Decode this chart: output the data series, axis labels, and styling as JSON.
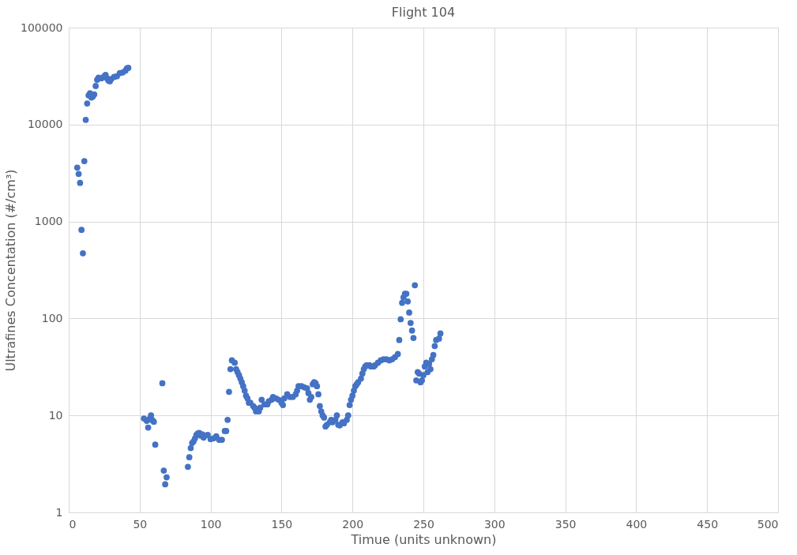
{
  "chart_data": {
    "type": "scatter",
    "title": "Flight 104",
    "xlabel": "Timue (units unknown)",
    "ylabel": "Ultrafines Concentation (#/cm³)",
    "log": "y",
    "grid": true,
    "marker": "circle",
    "xlim": [
      0,
      500
    ],
    "xticks": [
      0,
      50,
      100,
      150,
      200,
      250,
      300,
      350,
      400,
      450,
      500
    ],
    "ylim": [
      1,
      100000
    ],
    "yticks": [
      1,
      10,
      100,
      1000,
      10000,
      100000
    ],
    "series": [
      {
        "color": "#4472c4",
        "x": [
          6,
          7,
          8,
          9,
          10,
          11,
          12,
          13,
          14,
          15,
          16,
          17,
          18,
          19,
          20,
          21,
          23,
          25,
          26,
          27,
          28,
          29,
          30,
          32,
          34,
          36,
          38,
          40,
          41,
          42,
          53,
          55,
          56,
          57,
          58,
          59,
          60,
          61,
          66,
          67,
          68,
          69,
          84,
          85,
          86,
          87,
          88,
          89,
          90,
          91,
          92,
          93,
          94,
          95,
          96,
          98,
          100,
          102,
          104,
          106,
          108,
          110,
          111,
          112,
          113,
          114,
          115,
          117,
          118,
          119,
          120,
          121,
          122,
          123,
          124,
          125,
          126,
          127,
          128,
          130,
          131,
          132,
          134,
          135,
          136,
          138,
          140,
          141,
          143,
          144,
          146,
          148,
          150,
          151,
          152,
          154,
          156,
          158,
          160,
          161,
          162,
          164,
          166,
          168,
          169,
          170,
          171,
          172,
          173,
          174,
          175,
          176,
          177,
          178,
          179,
          180,
          181,
          182,
          184,
          185,
          186,
          188,
          189,
          190,
          191,
          193,
          194,
          196,
          197,
          198,
          199,
          200,
          201,
          202,
          203,
          204,
          206,
          207,
          208,
          209,
          210,
          212,
          213,
          215,
          216,
          218,
          220,
          222,
          224,
          226,
          228,
          230,
          232,
          233,
          234,
          235,
          236,
          237,
          238,
          239,
          240,
          241,
          242,
          243,
          244,
          245,
          246,
          247,
          248,
          249,
          250,
          251,
          252,
          253,
          254,
          255,
          256,
          257,
          258,
          259,
          261,
          262
        ],
        "values": [
          3600,
          3100,
          2500,
          820,
          470,
          4200,
          11200,
          16500,
          20000,
          21000,
          19000,
          19500,
          20500,
          25000,
          29000,
          30500,
          30000,
          31500,
          32500,
          30000,
          28500,
          28000,
          29500,
          31000,
          31500,
          34000,
          34500,
          36000,
          38000,
          38500,
          9.3,
          8.8,
          7.5,
          9.2,
          10,
          8.9,
          8.6,
          5,
          21.5,
          2.7,
          1.95,
          2.3,
          2.95,
          3.7,
          4.6,
          5.2,
          5.4,
          5.8,
          6.3,
          6.5,
          6.6,
          6.2,
          6.4,
          5.9,
          6.2,
          6.3,
          5.7,
          5.8,
          6.1,
          5.6,
          5.6,
          6.9,
          6.9,
          9,
          17.5,
          30,
          37,
          35,
          30,
          28,
          26,
          24,
          22,
          20,
          18,
          16,
          15,
          13.5,
          13.5,
          12.5,
          12,
          11,
          11,
          12,
          14.5,
          13,
          13,
          14,
          14.5,
          15.5,
          15,
          14.5,
          13.5,
          12.8,
          15,
          16.5,
          15.5,
          15.5,
          16.5,
          18,
          20,
          20,
          19.5,
          19,
          17,
          14.5,
          15.5,
          21,
          22,
          21.5,
          20,
          16.5,
          12.5,
          11,
          10,
          9.5,
          7.7,
          8,
          8.5,
          9,
          8.5,
          9,
          10,
          8,
          7.9,
          8.5,
          8.3,
          9,
          10,
          12.8,
          14.5,
          16,
          18,
          20,
          21,
          22,
          24,
          27,
          30,
          32,
          33,
          33,
          32,
          32,
          33,
          35,
          37,
          38,
          38,
          37,
          38,
          40,
          43,
          60,
          98,
          145,
          165,
          180,
          180,
          150,
          115,
          90,
          75,
          63,
          220,
          23,
          28,
          27,
          22,
          23,
          26,
          32,
          35,
          28,
          34,
          30,
          38,
          42,
          52,
          60,
          62,
          70
        ]
      }
    ]
  }
}
